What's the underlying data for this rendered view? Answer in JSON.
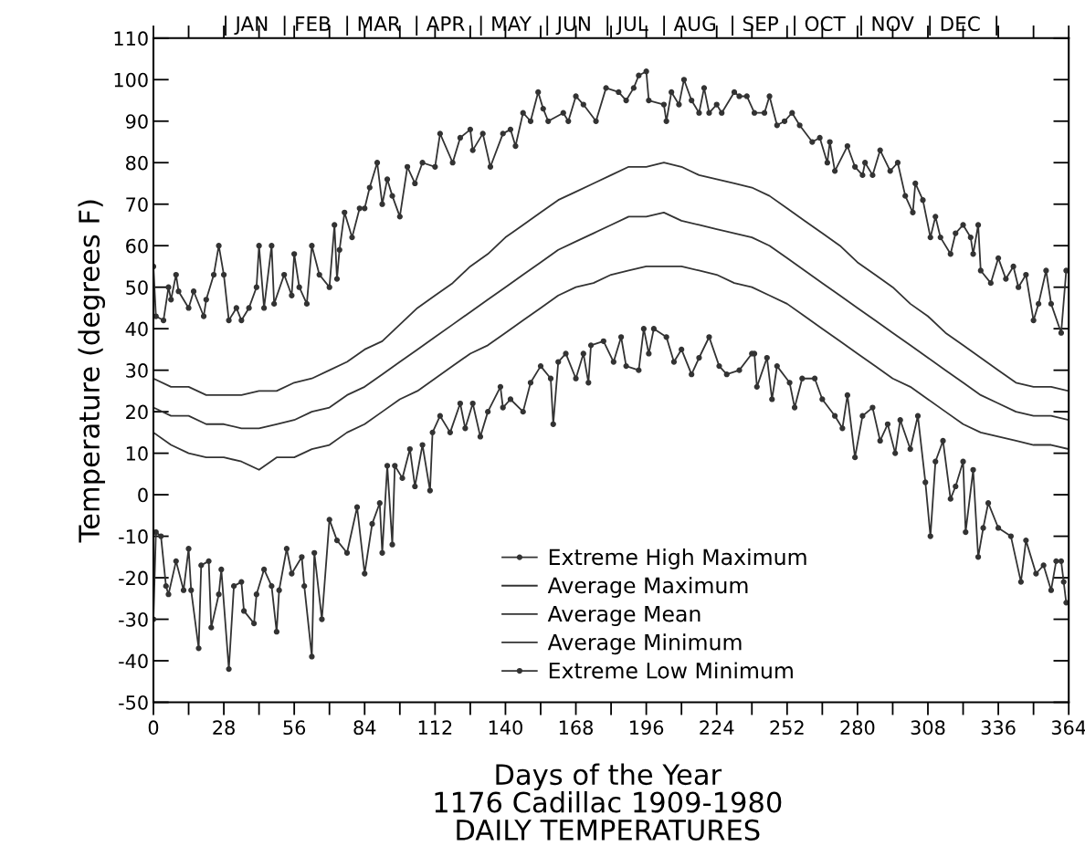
{
  "chart_data": {
    "type": "line",
    "xlabel": "Days of the Year",
    "ylabel": "Temperature (degrees F)",
    "title": "1176 Cadillac 1909-1980",
    "subtitle": "DAILY TEMPERATURES",
    "xlim": [
      0,
      364
    ],
    "xticks": [
      0,
      {
        "value": 14,
        "label": null
      },
      28,
      {
        "value": 42,
        "label": null
      },
      56,
      {
        "value": 70,
        "label": null
      },
      84,
      {
        "value": 98,
        "label": null
      },
      112,
      {
        "value": 126,
        "label": null
      },
      140,
      {
        "value": 154,
        "label": null
      },
      168,
      {
        "value": 182,
        "label": null
      },
      196,
      {
        "value": 210,
        "label": null
      },
      224,
      {
        "value": 238,
        "label": null
      },
      252,
      {
        "value": 266,
        "label": null
      },
      280,
      {
        "value": 294,
        "label": null
      },
      308,
      {
        "value": 322,
        "label": null
      },
      336,
      {
        "value": 350,
        "label": null
      },
      364
    ],
    "ylim": [
      -50,
      110
    ],
    "yticks": [
      -50,
      -40,
      -30,
      -20,
      -10,
      0,
      10,
      20,
      30,
      40,
      50,
      60,
      70,
      80,
      90,
      100,
      110
    ],
    "annotations": [
      "| JAN  | FEB  | MAR  | APR  | MAY  | JUN  | JUL  | AUG  | SEP  | OCT  | NOV  | DEC  |"
    ],
    "grid": false,
    "legend": "bottom",
    "line_style": "solid",
    "series": [
      {
        "name": "Extreme High Maximum",
        "color": "#333333",
        "marker": "circle",
        "x": [
          0,
          1,
          4,
          6,
          7,
          9,
          10,
          14,
          16,
          20,
          21,
          24,
          26,
          28,
          30,
          33,
          35,
          38,
          41,
          42,
          44,
          47,
          48,
          52,
          55,
          56,
          58,
          61,
          63,
          66,
          70,
          72,
          73,
          74,
          76,
          79,
          82,
          84,
          86,
          89,
          91,
          93,
          95,
          98,
          101,
          104,
          107,
          112,
          114,
          119,
          122,
          126,
          127,
          131,
          134,
          139,
          142,
          144,
          147,
          150,
          153,
          155,
          157,
          163,
          165,
          168,
          171,
          176,
          180,
          185,
          188,
          191,
          193,
          196,
          197,
          203,
          204,
          206,
          209,
          211,
          214,
          217,
          219,
          221,
          224,
          226,
          231,
          233,
          236,
          239,
          243,
          245,
          248,
          251,
          254,
          257,
          262,
          265,
          268,
          269,
          271,
          276,
          279,
          282,
          283,
          286,
          289,
          293,
          296,
          299,
          302,
          303,
          306,
          309,
          311,
          313,
          317,
          319,
          322,
          325,
          326,
          328,
          329,
          333,
          336,
          339,
          342,
          344,
          347,
          350,
          352,
          355,
          357,
          361,
          363
        ],
        "values": [
          55,
          43,
          42,
          50,
          47,
          53,
          49,
          45,
          49,
          43,
          47,
          53,
          60,
          53,
          42,
          45,
          42,
          45,
          50,
          60,
          45,
          60,
          46,
          53,
          48,
          58,
          50,
          46,
          60,
          53,
          50,
          65,
          52,
          59,
          68,
          62,
          69,
          69,
          74,
          80,
          70,
          76,
          72,
          67,
          79,
          75,
          80,
          79,
          87,
          80,
          86,
          88,
          83,
          87,
          79,
          87,
          88,
          84,
          92,
          90,
          97,
          93,
          90,
          92,
          90,
          96,
          94,
          90,
          98,
          97,
          95,
          98,
          101,
          102,
          95,
          94,
          90,
          97,
          94,
          100,
          95,
          92,
          98,
          92,
          94,
          92,
          97,
          96,
          96,
          92,
          92,
          96,
          89,
          90,
          92,
          89,
          85,
          86,
          80,
          85,
          78,
          84,
          79,
          77,
          80,
          77,
          83,
          78,
          80,
          72,
          68,
          75,
          71,
          62,
          67,
          62,
          58,
          63,
          65,
          62,
          58,
          65,
          54,
          51,
          57,
          52,
          55,
          50,
          53,
          42,
          46,
          54,
          46,
          39,
          54
        ]
      },
      {
        "name": "Average Maximum",
        "color": "#333333",
        "marker": "none",
        "x": [
          0,
          7,
          14,
          21,
          28,
          35,
          42,
          49,
          56,
          63,
          70,
          77,
          84,
          91,
          98,
          105,
          112,
          119,
          126,
          133,
          140,
          147,
          154,
          161,
          168,
          175,
          182,
          189,
          196,
          203,
          210,
          217,
          224,
          231,
          238,
          245,
          252,
          259,
          266,
          273,
          280,
          287,
          294,
          301,
          308,
          315,
          322,
          329,
          336,
          343,
          350,
          357,
          364
        ],
        "values": [
          28,
          26,
          26,
          24,
          24,
          24,
          25,
          25,
          27,
          28,
          30,
          32,
          35,
          37,
          41,
          45,
          48,
          51,
          55,
          58,
          62,
          65,
          68,
          71,
          73,
          75,
          77,
          79,
          79,
          80,
          79,
          77,
          76,
          75,
          74,
          72,
          69,
          66,
          63,
          60,
          56,
          53,
          50,
          46,
          43,
          39,
          36,
          33,
          30,
          27,
          26,
          26,
          25
        ]
      },
      {
        "name": "Average Mean",
        "color": "#333333",
        "marker": "none",
        "x": [
          0,
          7,
          14,
          21,
          28,
          35,
          42,
          49,
          56,
          63,
          70,
          77,
          84,
          91,
          98,
          105,
          112,
          119,
          126,
          133,
          140,
          147,
          154,
          161,
          168,
          175,
          182,
          189,
          196,
          203,
          210,
          217,
          224,
          231,
          238,
          245,
          252,
          259,
          266,
          273,
          280,
          287,
          294,
          301,
          308,
          315,
          322,
          329,
          336,
          343,
          350,
          357,
          364
        ],
        "values": [
          21,
          19,
          19,
          17,
          17,
          16,
          16,
          17,
          18,
          20,
          21,
          24,
          26,
          29,
          32,
          35,
          38,
          41,
          44,
          47,
          50,
          53,
          56,
          59,
          61,
          63,
          65,
          67,
          67,
          68,
          66,
          65,
          64,
          63,
          62,
          60,
          57,
          54,
          51,
          48,
          45,
          42,
          39,
          36,
          33,
          30,
          27,
          24,
          22,
          20,
          19,
          19,
          18
        ]
      },
      {
        "name": "Average Minimum",
        "color": "#333333",
        "marker": "none",
        "x": [
          0,
          7,
          14,
          21,
          28,
          35,
          42,
          49,
          56,
          63,
          70,
          77,
          84,
          91,
          98,
          105,
          112,
          119,
          126,
          133,
          140,
          147,
          154,
          161,
          168,
          175,
          182,
          189,
          196,
          203,
          210,
          217,
          224,
          231,
          238,
          245,
          252,
          259,
          266,
          273,
          280,
          287,
          294,
          301,
          308,
          315,
          322,
          329,
          336,
          343,
          350,
          357,
          364
        ],
        "values": [
          15,
          12,
          10,
          9,
          9,
          8,
          6,
          9,
          9,
          11,
          12,
          15,
          17,
          20,
          23,
          25,
          28,
          31,
          34,
          36,
          39,
          42,
          45,
          48,
          50,
          51,
          53,
          54,
          55,
          55,
          55,
          54,
          53,
          51,
          50,
          48,
          46,
          43,
          40,
          37,
          34,
          31,
          28,
          26,
          23,
          20,
          17,
          15,
          14,
          13,
          12,
          12,
          11
        ]
      },
      {
        "name": "Extreme Low Minimum",
        "color": "#333333",
        "marker": "circle",
        "x": [
          0,
          1,
          3,
          5,
          6,
          9,
          12,
          14,
          15,
          18,
          19,
          22,
          23,
          26,
          27,
          30,
          32,
          35,
          36,
          40,
          41,
          44,
          47,
          49,
          50,
          53,
          55,
          59,
          60,
          63,
          64,
          67,
          70,
          73,
          77,
          81,
          84,
          87,
          90,
          91,
          93,
          95,
          96,
          99,
          102,
          104,
          107,
          110,
          111,
          114,
          118,
          122,
          124,
          127,
          130,
          133,
          138,
          139,
          142,
          147,
          150,
          154,
          158,
          159,
          161,
          164,
          168,
          171,
          173,
          174,
          179,
          183,
          186,
          188,
          193,
          195,
          197,
          199,
          204,
          207,
          210,
          214,
          217,
          221,
          225,
          228,
          233,
          238,
          239,
          240,
          244,
          246,
          248,
          253,
          255,
          258,
          263,
          266,
          271,
          274,
          276,
          279,
          282,
          286,
          289,
          292,
          295,
          297,
          301,
          304,
          307,
          309,
          311,
          314,
          317,
          319,
          322,
          323,
          326,
          328,
          330,
          332,
          336,
          341,
          345,
          347,
          351,
          354,
          357,
          359,
          361,
          362,
          363
        ],
        "values": [
          -30,
          -9,
          -10,
          -22,
          -24,
          -16,
          -23,
          -13,
          -23,
          -37,
          -17,
          -16,
          -32,
          -24,
          -18,
          -42,
          -22,
          -21,
          -28,
          -31,
          -24,
          -18,
          -22,
          -33,
          -23,
          -13,
          -19,
          -15,
          -22,
          -39,
          -14,
          -30,
          -6,
          -11,
          -14,
          -3,
          -19,
          -7,
          -2,
          -14,
          7,
          -12,
          7,
          4,
          11,
          2,
          12,
          1,
          15,
          19,
          15,
          22,
          16,
          22,
          14,
          20,
          26,
          21,
          23,
          20,
          27,
          31,
          28,
          17,
          32,
          34,
          28,
          34,
          27,
          36,
          37,
          32,
          38,
          31,
          30,
          40,
          34,
          40,
          38,
          32,
          35,
          29,
          33,
          38,
          31,
          29,
          30,
          34,
          34,
          26,
          33,
          23,
          31,
          27,
          21,
          28,
          28,
          23,
          19,
          16,
          24,
          9,
          19,
          21,
          13,
          17,
          10,
          18,
          11,
          19,
          3,
          -10,
          8,
          13,
          -1,
          2,
          8,
          -9,
          6,
          -15,
          -8,
          -2,
          -8,
          -10,
          -21,
          -11,
          -19,
          -17,
          -23,
          -16,
          -16,
          -21,
          -26
        ]
      }
    ]
  }
}
